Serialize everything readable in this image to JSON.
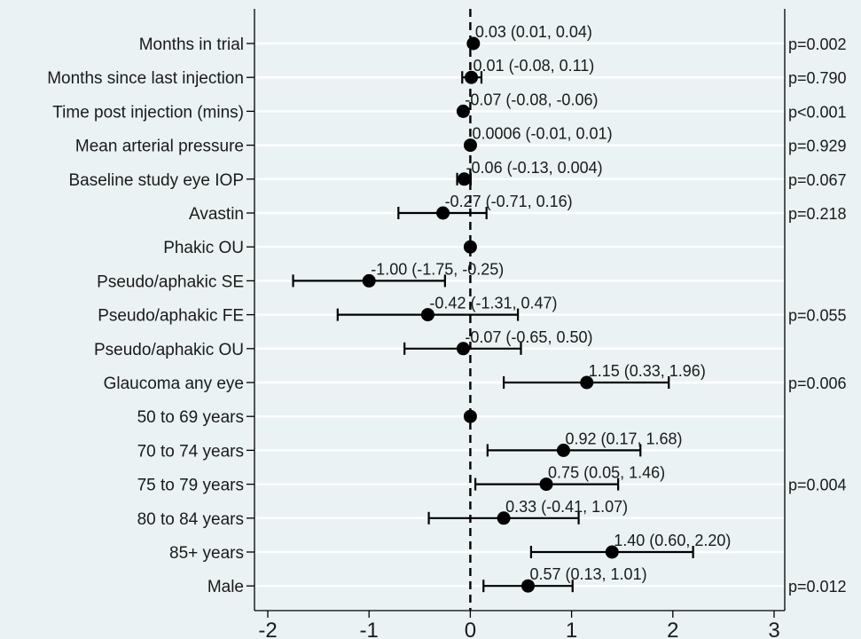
{
  "chart_data": {
    "type": "forest",
    "xlim": [
      -2,
      3
    ],
    "x_ticks": [
      -2,
      -1,
      0,
      1,
      2,
      3
    ],
    "reference_line": 0,
    "grid": "horizontal",
    "rows": [
      {
        "label": "Months in trial",
        "estimate": 0.03,
        "lower": 0.01,
        "upper": 0.04,
        "ci_text": "0.03 (0.01, 0.04)",
        "p_text": "p=0.002"
      },
      {
        "label": "Months since last injection",
        "estimate": 0.01,
        "lower": -0.08,
        "upper": 0.11,
        "ci_text": "0.01 (-0.08, 0.11)",
        "p_text": "p=0.790"
      },
      {
        "label": "Time post injection (mins)",
        "estimate": -0.07,
        "lower": -0.08,
        "upper": -0.06,
        "ci_text": "-0.07 (-0.08, -0.06)",
        "p_text": "p<0.001"
      },
      {
        "label": "Mean arterial pressure",
        "estimate": 0.0006,
        "lower": -0.01,
        "upper": 0.01,
        "ci_text": "0.0006 (-0.01, 0.01)",
        "p_text": "p=0.929"
      },
      {
        "label": "Baseline study eye IOP",
        "estimate": -0.06,
        "lower": -0.13,
        "upper": 0.004,
        "ci_text": "-0.06 (-0.13, 0.004)",
        "p_text": "p=0.067"
      },
      {
        "label": "Avastin",
        "estimate": -0.27,
        "lower": -0.71,
        "upper": 0.16,
        "ci_text": "-0.27 (-0.71, 0.16)",
        "p_text": "p=0.218"
      },
      {
        "label": "Phakic OU",
        "estimate": 0,
        "lower": null,
        "upper": null,
        "ci_text": "",
        "p_text": ""
      },
      {
        "label": "Pseudo/aphakic SE",
        "estimate": -1.0,
        "lower": -1.75,
        "upper": -0.25,
        "ci_text": "-1.00 (-1.75, -0.25)",
        "p_text": ""
      },
      {
        "label": "Pseudo/aphakic FE",
        "estimate": -0.42,
        "lower": -1.31,
        "upper": 0.47,
        "ci_text": "-0.42 (-1.31, 0.47)",
        "p_text": "p=0.055"
      },
      {
        "label": "Pseudo/aphakic OU",
        "estimate": -0.07,
        "lower": -0.65,
        "upper": 0.5,
        "ci_text": "-0.07 (-0.65, 0.50)",
        "p_text": ""
      },
      {
        "label": "Glaucoma any eye",
        "estimate": 1.15,
        "lower": 0.33,
        "upper": 1.96,
        "ci_text": "1.15 (0.33, 1.96)",
        "p_text": "p=0.006"
      },
      {
        "label": "50 to 69 years",
        "estimate": 0,
        "lower": null,
        "upper": null,
        "ci_text": "",
        "p_text": ""
      },
      {
        "label": "70 to 74 years",
        "estimate": 0.92,
        "lower": 0.17,
        "upper": 1.68,
        "ci_text": "0.92 (0.17, 1.68)",
        "p_text": ""
      },
      {
        "label": "75 to 79 years",
        "estimate": 0.75,
        "lower": 0.05,
        "upper": 1.46,
        "ci_text": "0.75 (0.05, 1.46)",
        "p_text": "p=0.004"
      },
      {
        "label": "80 to 84 years",
        "estimate": 0.33,
        "lower": -0.41,
        "upper": 1.07,
        "ci_text": "0.33 (-0.41, 1.07)",
        "p_text": ""
      },
      {
        "label": "85+ years",
        "estimate": 1.4,
        "lower": 0.6,
        "upper": 2.2,
        "ci_text": "1.40 (0.60, 2.20)",
        "p_text": ""
      },
      {
        "label": "Male",
        "estimate": 0.57,
        "lower": 0.13,
        "upper": 1.01,
        "ci_text": "0.57 (0.13, 1.01)",
        "p_text": "p=0.012"
      }
    ],
    "colors": {
      "background": "#eaf2f3",
      "gridline": "#ffffff",
      "marker": "#000000",
      "axis": "#000000"
    }
  }
}
